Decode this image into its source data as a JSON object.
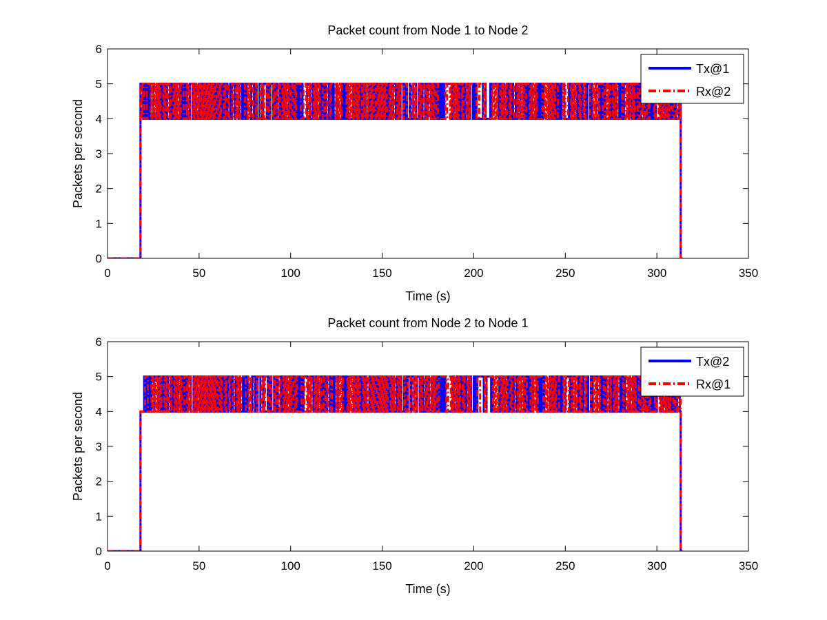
{
  "chart_data": [
    {
      "type": "line",
      "title": "Packet count from Node 1 to Node 2",
      "xlabel": "Time (s)",
      "ylabel": "Packets per second",
      "xlim": [
        0,
        350
      ],
      "ylim": [
        0,
        6
      ],
      "xticks": [
        "0",
        "50",
        "100",
        "150",
        "200",
        "250",
        "300",
        "350"
      ],
      "yticks": [
        "0",
        "1",
        "2",
        "3",
        "4",
        "5",
        "6"
      ],
      "grid": false,
      "legend_position": "top-right",
      "series": [
        {
          "name": "Tx@1",
          "color": "#0000ff",
          "style": "solid",
          "description": "0 until ~18 s, then alternates between 4 and 5 packets/s every second until ~313 s, then drops to 0",
          "start": 18,
          "end": 313,
          "low": 4,
          "high": 5,
          "baseline": 0
        },
        {
          "name": "Rx@2",
          "color": "#ff0000",
          "style": "dashdot",
          "description": "0 until ~18 s, then alternates between 4 and 5 packets/s every second until ~313 s, then drops to 0",
          "start": 18,
          "end": 313,
          "low": 4,
          "high": 5,
          "baseline": 0
        }
      ]
    },
    {
      "type": "line",
      "title": "Packet count from Node 2 to Node 1",
      "xlabel": "Time (s)",
      "ylabel": "Packets per second",
      "xlim": [
        0,
        350
      ],
      "ylim": [
        0,
        6
      ],
      "xticks": [
        "0",
        "50",
        "100",
        "150",
        "200",
        "250",
        "300",
        "350"
      ],
      "yticks": [
        "0",
        "1",
        "2",
        "3",
        "4",
        "5",
        "6"
      ],
      "grid": false,
      "legend_position": "top-right",
      "series": [
        {
          "name": "Tx@2",
          "color": "#0000ff",
          "style": "solid",
          "description": "0 until ~18 s, 4 until ~20 s, then alternates between 4 and 5 packets/s every second until ~313 s, then drops to 0",
          "start": 18,
          "end": 313,
          "low": 4,
          "high": 5,
          "baseline": 0
        },
        {
          "name": "Rx@1",
          "color": "#ff0000",
          "style": "dashdot",
          "description": "0 until ~18 s, 4 until ~20 s, then alternates between 4 and 5 packets/s every second until ~313 s, then drops to 0",
          "start": 18,
          "end": 313,
          "low": 4,
          "high": 5,
          "baseline": 0
        }
      ]
    }
  ]
}
